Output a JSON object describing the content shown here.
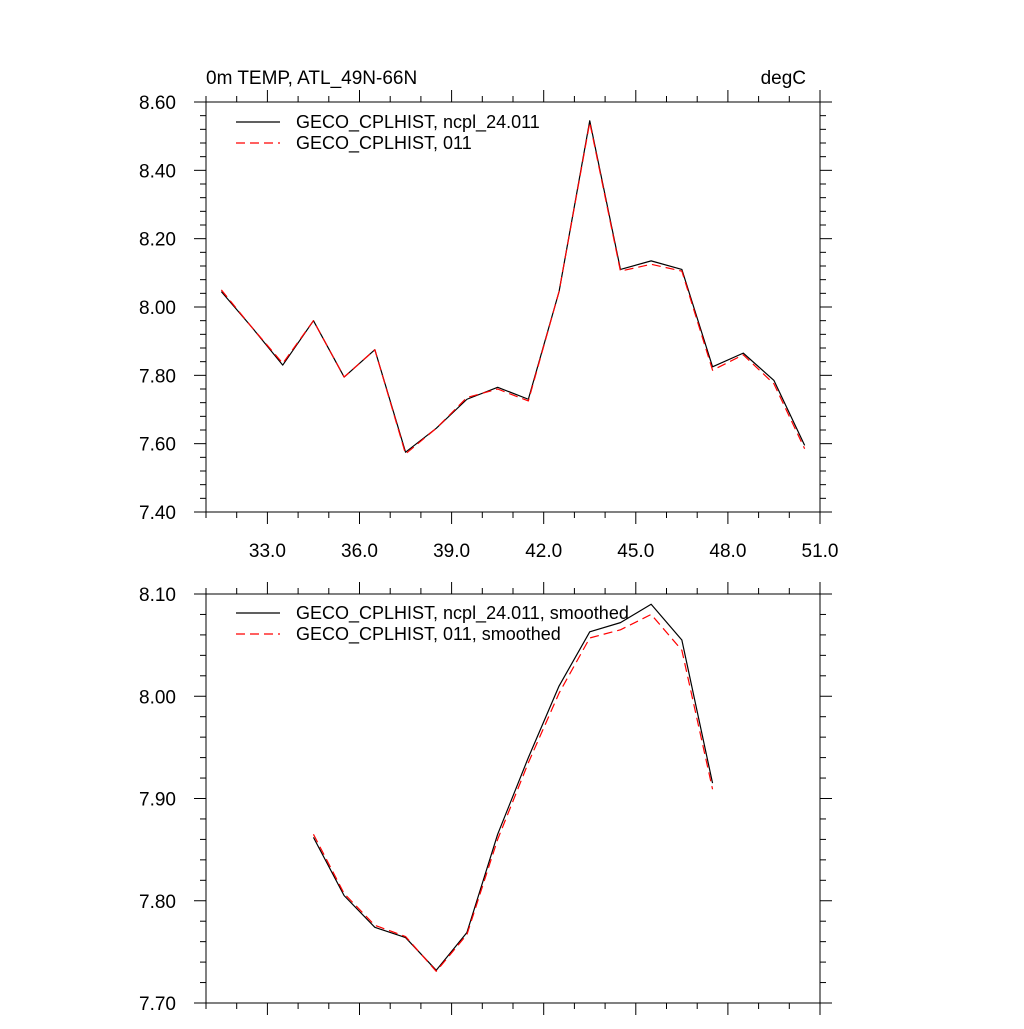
{
  "chart_data": [
    {
      "type": "line",
      "title": "0m TEMP, ATL_49N-66N",
      "units": "degC",
      "xlim": [
        31,
        51
      ],
      "ylim": [
        7.4,
        8.6
      ],
      "x_ticks": [
        33,
        36,
        39,
        42,
        45,
        48,
        51
      ],
      "x_tick_labels": [
        "33.0",
        "36.0",
        "39.0",
        "42.0",
        "45.0",
        "48.0",
        "51.0"
      ],
      "y_ticks": [
        7.4,
        7.6,
        7.8,
        8.0,
        8.2,
        8.4,
        8.6
      ],
      "y_tick_labels": [
        "7.40",
        "7.60",
        "7.80",
        "8.00",
        "8.20",
        "8.40",
        "8.60"
      ],
      "legend_position": "top-left",
      "grid": false,
      "x": [
        31.5,
        32.5,
        33.5,
        34.5,
        35.5,
        36.5,
        37.5,
        38.5,
        39.5,
        40.5,
        41.5,
        42.5,
        43.5,
        44.5,
        45.5,
        46.5,
        47.5,
        48.5,
        49.5,
        50.5
      ],
      "series": [
        {
          "name": "GECO_CPLHIST, ncpl_24.011",
          "color": "#000000",
          "dash": "solid",
          "values": [
            8.045,
            7.94,
            7.83,
            7.96,
            7.795,
            7.875,
            7.575,
            7.645,
            7.73,
            7.765,
            7.73,
            8.045,
            8.545,
            8.11,
            8.135,
            8.11,
            7.825,
            7.865,
            7.785,
            7.595
          ]
        },
        {
          "name": "GECO_CPLHIST, 011",
          "color": "#ff0000",
          "dash": "dashed",
          "values": [
            8.05,
            7.94,
            7.835,
            7.96,
            7.795,
            7.875,
            7.57,
            7.645,
            7.735,
            7.76,
            7.725,
            8.045,
            8.54,
            8.105,
            8.125,
            8.105,
            7.815,
            7.86,
            7.775,
            7.585
          ]
        }
      ]
    },
    {
      "type": "line",
      "xlim": [
        31,
        51
      ],
      "ylim": [
        7.7,
        8.1
      ],
      "x_ticks": [
        33,
        36,
        39,
        42,
        45,
        48,
        51
      ],
      "y_ticks": [
        7.7,
        7.8,
        7.9,
        8.0,
        8.1
      ],
      "y_tick_labels": [
        "7.70",
        "7.80",
        "7.90",
        "8.00",
        "8.10"
      ],
      "legend_position": "top-left",
      "grid": false,
      "x": [
        34.5,
        35.5,
        36.5,
        37.5,
        38.5,
        39.5,
        40.5,
        41.5,
        42.5,
        43.5,
        44.5,
        45.5,
        46.5,
        47.5
      ],
      "series": [
        {
          "name": "GECO_CPLHIST, ncpl_24.011, smoothed",
          "color": "#000000",
          "dash": "solid",
          "values": [
            7.862,
            7.805,
            7.774,
            7.764,
            7.732,
            7.769,
            7.865,
            7.94,
            8.01,
            8.063,
            8.072,
            8.09,
            8.055,
            7.915
          ]
        },
        {
          "name": "GECO_CPLHIST, 011, smoothed",
          "color": "#ff0000",
          "dash": "dashed",
          "values": [
            7.865,
            7.807,
            7.776,
            7.765,
            7.731,
            7.767,
            7.86,
            7.935,
            8.003,
            8.057,
            8.065,
            8.08,
            8.045,
            7.909
          ]
        }
      ]
    }
  ]
}
